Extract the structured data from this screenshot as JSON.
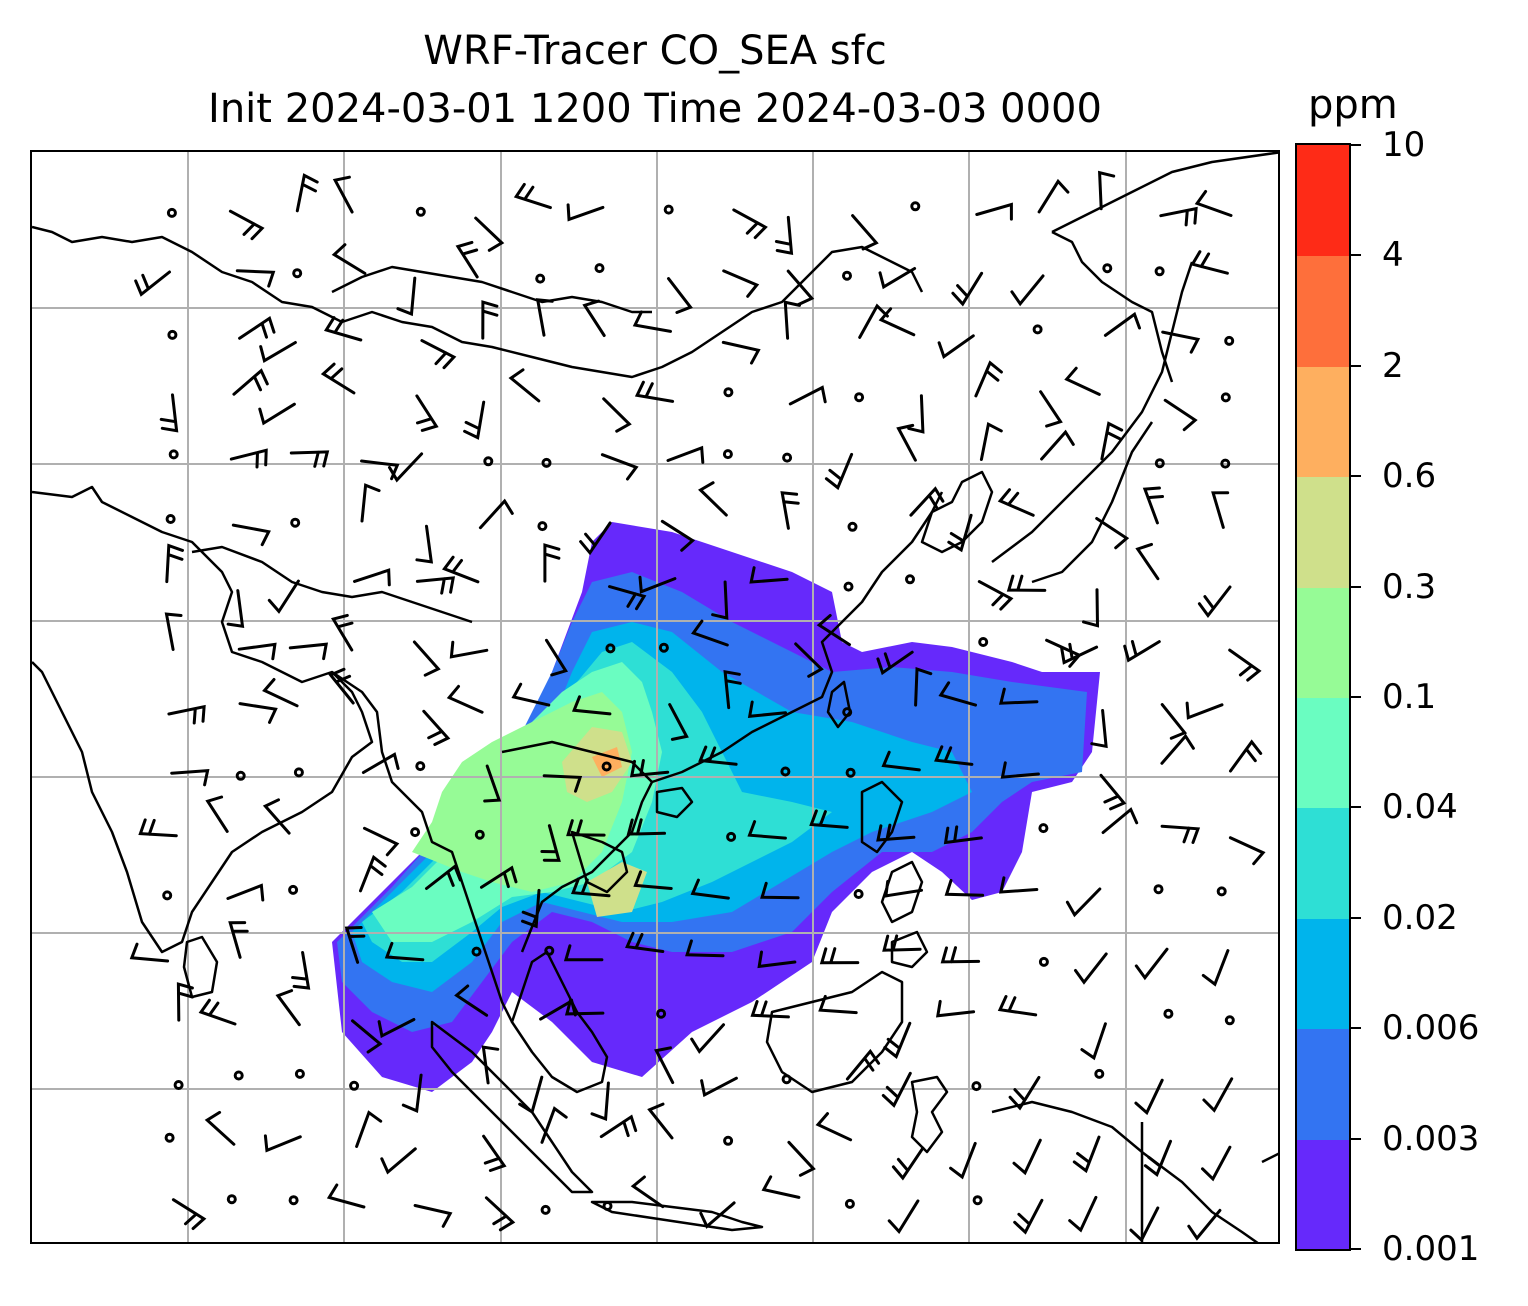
{
  "title": {
    "line1": "WRF-Tracer CO_SEA sfc",
    "line2": "Init 2024-03-01 1200 Time 2024-03-03 0000"
  },
  "colorbar": {
    "units": "ppm",
    "levels": [
      "0.001",
      "0.003",
      "0.006",
      "0.02",
      "0.04",
      "0.1",
      "0.3",
      "0.6",
      "2",
      "4",
      "10"
    ],
    "colors": [
      "#6629fb",
      "#3374f2",
      "#00b4ec",
      "#2edfd5",
      "#6afdc1",
      "#96fb96",
      "#cfe08b",
      "#feaf5f",
      "#fe6f3b",
      "#fe2b17"
    ]
  },
  "map": {
    "background": "#ffffff",
    "coastline_color": "#000000",
    "grid_color": "#b0b0b0",
    "barb_color": "#000000",
    "features": [
      "coastlines",
      "country-borders",
      "lat-lon-gridlines",
      "wind-barbs",
      "calm-wind-circles",
      "tracer-concentration-contours"
    ]
  }
}
